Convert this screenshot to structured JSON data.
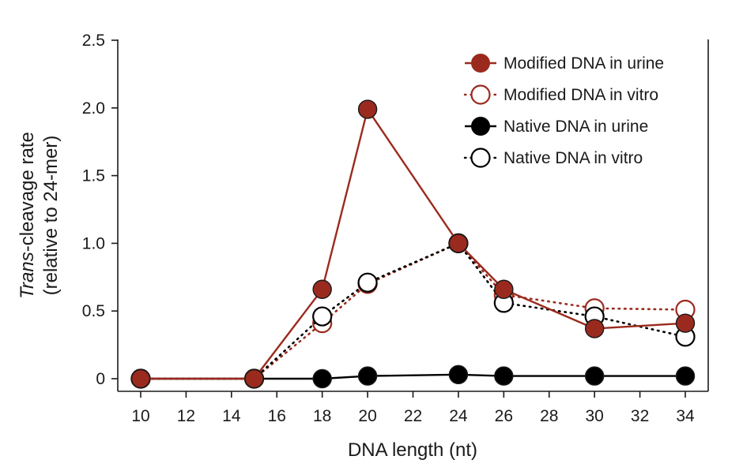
{
  "chart_data": {
    "type": "line",
    "xlabel": "DNA length (nt)",
    "ylabel_italic": "Trans",
    "ylabel_rest": "-cleavage rate",
    "ylabel_line2": "(relative to 24-mer)",
    "xlim": [
      9.5,
      35
    ],
    "ylim": [
      -0.1,
      2.5
    ],
    "x_ticks": [
      10,
      12,
      14,
      16,
      18,
      20,
      22,
      24,
      26,
      28,
      30,
      32,
      34
    ],
    "y_ticks": [
      {
        "value": 0,
        "label": "0"
      },
      {
        "value": 0.5,
        "label": "0.5"
      },
      {
        "value": 1.0,
        "label": "1.0"
      },
      {
        "value": 1.5,
        "label": "1.5"
      },
      {
        "value": 2.0,
        "label": "2.0"
      },
      {
        "value": 2.5,
        "label": "2.5"
      }
    ],
    "grid": false,
    "legend_position": "top-right",
    "series": [
      {
        "name": "Modified DNA in vitro",
        "color": "#9b2a1e",
        "marker": "open",
        "line": "dotted",
        "x": [
          10,
          15,
          18,
          20,
          24,
          26,
          30,
          34
        ],
        "y": [
          0,
          0,
          0.41,
          0.7,
          1.0,
          0.62,
          0.52,
          0.51
        ]
      },
      {
        "name": "Native DNA in vitro",
        "color": "#000000",
        "marker": "open",
        "line": "dotted",
        "x": [
          10,
          15,
          18,
          20,
          24,
          26,
          30,
          34
        ],
        "y": [
          0,
          0,
          0.46,
          0.71,
          1.0,
          0.56,
          0.46,
          0.31
        ]
      },
      {
        "name": "Native DNA in urine",
        "color": "#000000",
        "marker": "filled",
        "line": "solid",
        "x": [
          10,
          15,
          18,
          20,
          24,
          26,
          30,
          34
        ],
        "y": [
          0,
          0,
          0,
          0.02,
          0.03,
          0.02,
          0.02,
          0.02
        ]
      },
      {
        "name": "Modified DNA in urine",
        "color": "#9b2a1e",
        "marker": "filled",
        "line": "solid",
        "x": [
          10,
          15,
          18,
          20,
          24,
          26,
          30,
          34
        ],
        "y": [
          0,
          0,
          0.66,
          1.99,
          1.0,
          0.66,
          0.37,
          0.41
        ]
      }
    ],
    "legend_order": [
      "Modified DNA in urine",
      "Modified DNA in vitro",
      "Native DNA in urine",
      "Native DNA in vitro"
    ]
  }
}
